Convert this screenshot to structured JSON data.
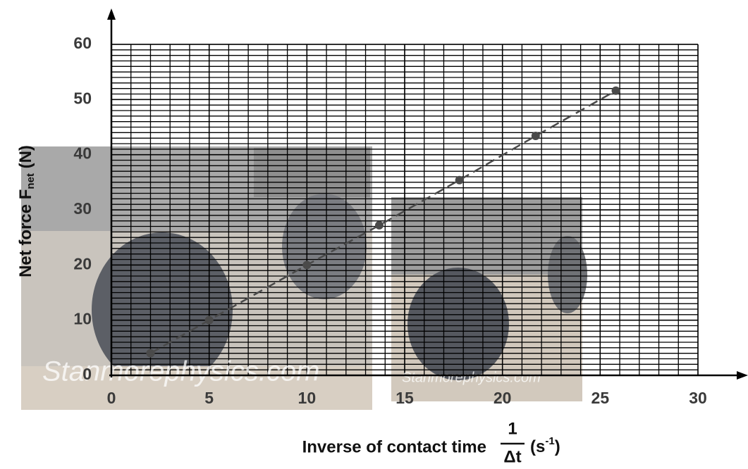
{
  "chart_data": {
    "type": "line",
    "ylabel": {
      "main": "Net force F",
      "sub": "net",
      "unit": " (N)"
    },
    "xlabel": {
      "main": "Inverse of contact time",
      "numerator": "1",
      "denominator": "Δt",
      "unit_open": "(s",
      "unit_exp": "-1",
      "unit_close": ")"
    },
    "annotations": [
      "Stanmorephysics.com",
      "Stanmorephysics.com"
    ],
    "x": [
      2,
      5,
      10,
      13.7,
      17.8,
      21.7,
      25.8
    ],
    "series": [
      {
        "color": "#4a4a4a",
        "values": [
          4,
          10,
          20,
          27.2,
          35.4,
          43.4,
          51.6
        ]
      }
    ],
    "dashed": true,
    "xlim": [
      0,
      30
    ],
    "xticks": [
      0,
      5,
      10,
      15,
      20,
      25,
      30
    ],
    "ylim": [
      0,
      60
    ],
    "yticks": [
      0,
      10,
      20,
      30,
      40,
      50,
      60
    ],
    "grid": true
  }
}
